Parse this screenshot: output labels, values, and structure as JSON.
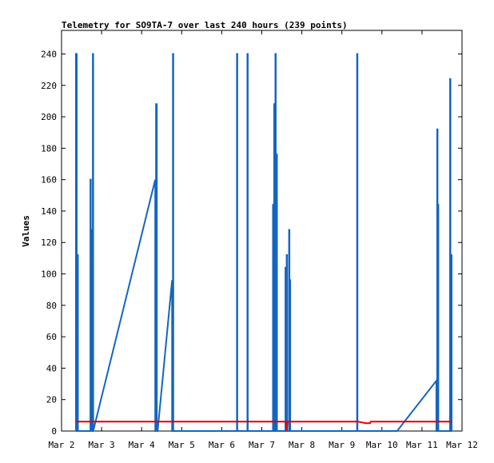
{
  "chart_data": {
    "type": "line",
    "title": "Telemetry for SO9TA-7 over last 240 hours (239 points)",
    "xlabel": "",
    "ylabel": "Values",
    "x_ticks": [
      "Mar 2",
      "Mar 3",
      "Mar 4",
      "Mar 5",
      "Mar 6",
      "Mar 7",
      "Mar 8",
      "Mar 9",
      "Mar 10",
      "Mar 11",
      "Mar 12"
    ],
    "y_ticks": [
      0,
      20,
      40,
      60,
      80,
      100,
      120,
      140,
      160,
      180,
      200,
      220,
      240
    ],
    "xlim": [
      0,
      10
    ],
    "ylim": [
      0,
      255
    ],
    "grid": false,
    "legend": "none",
    "series": [
      {
        "color": "#1565c0",
        "points": [
          [
            0.36,
            0
          ],
          [
            0.36,
            240
          ],
          [
            0.38,
            240
          ],
          [
            0.38,
            0
          ],
          [
            0.4,
            0
          ],
          [
            0.4,
            112
          ],
          [
            0.41,
            112
          ],
          [
            0.41,
            0
          ],
          [
            0.72,
            0
          ],
          [
            0.72,
            160
          ],
          [
            0.73,
            160
          ],
          [
            0.73,
            0
          ],
          [
            0.75,
            0
          ],
          [
            0.75,
            128
          ],
          [
            0.76,
            128
          ],
          [
            0.76,
            0
          ],
          [
            0.78,
            0
          ],
          [
            0.78,
            240
          ],
          [
            0.79,
            240
          ],
          [
            0.79,
            0
          ],
          [
            2.34,
            160
          ],
          [
            2.34,
            0
          ],
          [
            2.36,
            0
          ],
          [
            2.36,
            208
          ],
          [
            2.38,
            208
          ],
          [
            2.38,
            0
          ],
          [
            2.4,
            0
          ],
          [
            2.76,
            96
          ],
          [
            2.76,
            0
          ],
          [
            2.78,
            0
          ],
          [
            2.78,
            240
          ],
          [
            2.79,
            240
          ],
          [
            2.79,
            0
          ],
          [
            4.38,
            0
          ],
          [
            4.38,
            240
          ],
          [
            4.39,
            240
          ],
          [
            4.39,
            0
          ],
          [
            4.64,
            0
          ],
          [
            4.64,
            240
          ],
          [
            4.65,
            240
          ],
          [
            4.65,
            0
          ],
          [
            5.28,
            0
          ],
          [
            5.28,
            144
          ],
          [
            5.29,
            144
          ],
          [
            5.29,
            0
          ],
          [
            5.31,
            0
          ],
          [
            5.31,
            208
          ],
          [
            5.32,
            208
          ],
          [
            5.32,
            0
          ],
          [
            5.34,
            0
          ],
          [
            5.34,
            240
          ],
          [
            5.35,
            240
          ],
          [
            5.35,
            0
          ],
          [
            5.37,
            0
          ],
          [
            5.37,
            176
          ],
          [
            5.38,
            176
          ],
          [
            5.38,
            0
          ],
          [
            5.59,
            0
          ],
          [
            5.59,
            104
          ],
          [
            5.6,
            104
          ],
          [
            5.6,
            0
          ],
          [
            5.62,
            0
          ],
          [
            5.62,
            112
          ],
          [
            5.63,
            112
          ],
          [
            5.63,
            0
          ],
          [
            5.68,
            0
          ],
          [
            5.68,
            128
          ],
          [
            5.69,
            128
          ],
          [
            5.69,
            0
          ],
          [
            5.7,
            0
          ],
          [
            5.7,
            96
          ],
          [
            5.71,
            96
          ],
          [
            5.71,
            0
          ],
          [
            7.38,
            0
          ],
          [
            7.38,
            240
          ],
          [
            7.39,
            240
          ],
          [
            7.39,
            0
          ],
          [
            8.38,
            0
          ],
          [
            9.36,
            32
          ],
          [
            9.36,
            0
          ],
          [
            9.38,
            0
          ],
          [
            9.38,
            192
          ],
          [
            9.39,
            192
          ],
          [
            9.39,
            0
          ],
          [
            9.4,
            0
          ],
          [
            9.4,
            144
          ],
          [
            9.41,
            144
          ],
          [
            9.41,
            0
          ],
          [
            9.7,
            0
          ],
          [
            9.7,
            224
          ],
          [
            9.71,
            224
          ],
          [
            9.71,
            0
          ],
          [
            9.73,
            0
          ],
          [
            9.73,
            112
          ],
          [
            9.74,
            112
          ],
          [
            9.74,
            0
          ]
        ]
      },
      {
        "color": "#e00000",
        "points": [
          [
            0.36,
            6
          ],
          [
            5.6,
            6
          ],
          [
            5.62,
            0
          ],
          [
            5.64,
            6
          ],
          [
            7.4,
            6
          ],
          [
            7.6,
            5
          ],
          [
            7.7,
            5
          ],
          [
            7.72,
            6
          ],
          [
            9.74,
            6
          ]
        ]
      }
    ]
  }
}
